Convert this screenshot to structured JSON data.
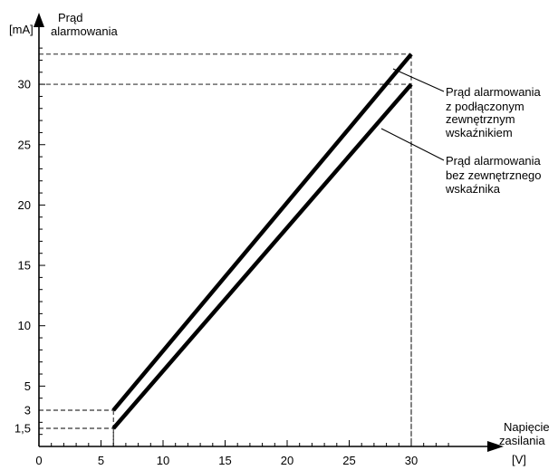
{
  "chart_data": {
    "type": "line",
    "y_unit": "[mA]",
    "y_title_lines": [
      "Prąd",
      "alarmowania"
    ],
    "x_title_lines": [
      "Napięcie",
      "zasilania"
    ],
    "x_unit": "[V]",
    "xlim": [
      0,
      34
    ],
    "ylim": [
      0,
      34
    ],
    "x_ticks": [
      0,
      5,
      10,
      15,
      20,
      25,
      30
    ],
    "x_tick_labels": [
      "0",
      "5",
      "10",
      "15",
      "20",
      "25",
      "30"
    ],
    "y_ticks_labeled": [
      1.5,
      3,
      5,
      10,
      15,
      20,
      25,
      30
    ],
    "y_tick_labels": [
      "1,5",
      "3",
      "5",
      "10",
      "15",
      "20",
      "25",
      "30"
    ],
    "x_minor_step": 1,
    "y_minor_step": 1,
    "series": [
      {
        "name_lines": [
          "Prąd alarmowania",
          "z podłączonym",
          "zewnętrznym",
          "wskaźnikiem"
        ],
        "x": [
          6,
          30
        ],
        "y": [
          3,
          32.5
        ]
      },
      {
        "name_lines": [
          "Prąd alarmowania",
          "bez zewnętrznego",
          "wskaźnika"
        ],
        "x": [
          6,
          30
        ],
        "y": [
          1.5,
          30
        ]
      }
    ],
    "guides": [
      {
        "x": 6,
        "y": 3
      },
      {
        "x": 6,
        "y": 1.5
      },
      {
        "x": 30,
        "y": 32.5
      },
      {
        "x": 30,
        "y": 30
      }
    ],
    "grid": false
  }
}
